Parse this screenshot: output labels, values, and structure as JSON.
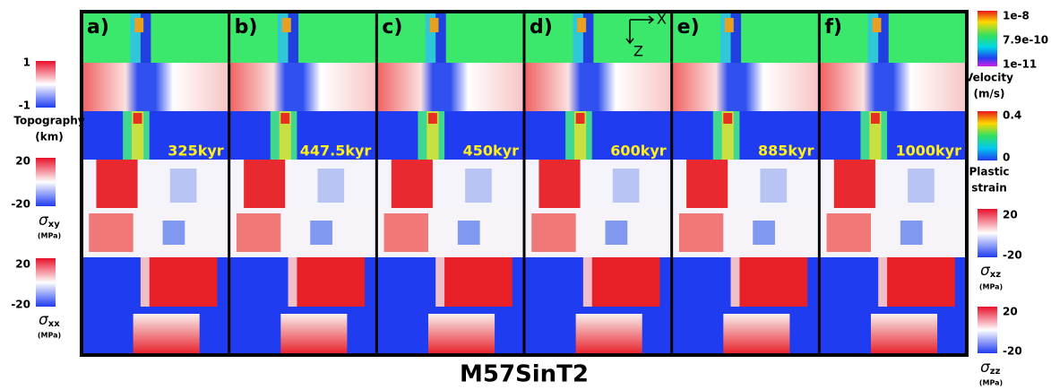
{
  "title": "M57SinT2",
  "panels": [
    {
      "label": "a)",
      "time": "325kyr"
    },
    {
      "label": "b)",
      "time": "447.5kyr"
    },
    {
      "label": "c)",
      "time": "450kyr"
    },
    {
      "label": "d)",
      "time": "600kyr"
    },
    {
      "label": "e)",
      "time": "885kyr"
    },
    {
      "label": "f)",
      "time": "1000kyr"
    }
  ],
  "axes_indicator": {
    "x": "X",
    "z": "Z"
  },
  "colorbars": {
    "topography": {
      "ticks": [
        1,
        -1
      ],
      "label": [
        "Topography",
        "(km)"
      ]
    },
    "sigma_xy": {
      "ticks": [
        20,
        -20
      ],
      "symbol": "σ",
      "sub": "xy",
      "unit": "(MPa)"
    },
    "sigma_xx": {
      "ticks": [
        20,
        -20
      ],
      "symbol": "σ",
      "sub": "xx",
      "unit": "(MPa)"
    },
    "velocity": {
      "ticks": [
        "1e-8",
        "7.9e-10",
        "1e-11"
      ],
      "label": [
        "Velocity",
        "(m/s)"
      ]
    },
    "plastic_strain": {
      "ticks": [
        0.4,
        0
      ],
      "label": [
        "Plastic",
        "strain"
      ]
    },
    "sigma_xz": {
      "ticks": [
        20,
        -20
      ],
      "symbol": "σ",
      "sub": "xz",
      "unit": "(MPa)"
    },
    "sigma_zz": {
      "ticks": [
        20,
        -20
      ],
      "symbol": "σ",
      "sub": "zz",
      "unit": "(MPa)"
    }
  }
}
